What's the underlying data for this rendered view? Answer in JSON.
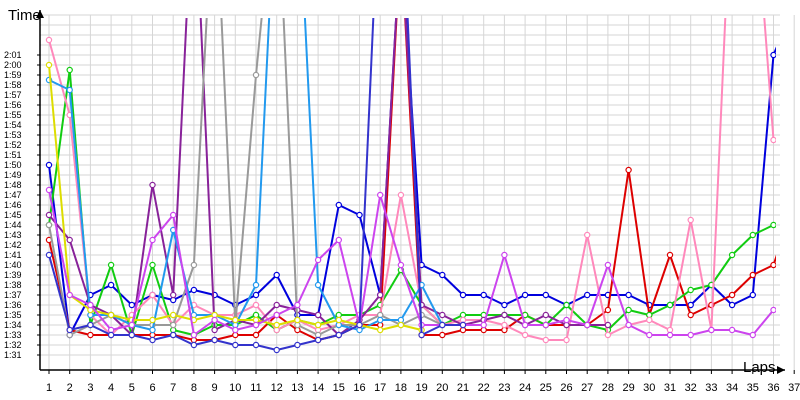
{
  "chart_data": {
    "type": "line",
    "ylabel": "Time",
    "xlabel": "Laps",
    "x": [
      1,
      2,
      3,
      4,
      5,
      6,
      7,
      8,
      9,
      10,
      11,
      12,
      13,
      14,
      15,
      16,
      17,
      18,
      19,
      20,
      21,
      22,
      23,
      24,
      25,
      26,
      27,
      28,
      29,
      30,
      31,
      32,
      33,
      34,
      35,
      36,
      37
    ],
    "y_ticks": [
      "1:31",
      "1:32",
      "1:33",
      "1:34",
      "1:35",
      "1:36",
      "1:37",
      "1:38",
      "1:39",
      "1:40",
      "1:41",
      "1:42",
      "1:43",
      "1:44",
      "1:45",
      "1:46",
      "1:47",
      "1:48",
      "1:49",
      "1:50",
      "1:51",
      "1:52",
      "1:53",
      "1:54",
      "1:55",
      "1:56",
      "1:57",
      "1:58",
      "1:59",
      "2:00",
      "2:01"
    ],
    "ylim_seconds": [
      91,
      121
    ],
    "xlim": [
      1,
      37
    ],
    "grid": true,
    "legend": "none",
    "series": [
      {
        "color": "#0000dd",
        "values": [
          110,
          93,
          97,
          98,
          96,
          97,
          96.5,
          97.5,
          97,
          96,
          97,
          99,
          95,
          95,
          106,
          105,
          97,
          133,
          100,
          99,
          97,
          97,
          96,
          97,
          97,
          96,
          97,
          97,
          97,
          96,
          96,
          96,
          98,
          96,
          97,
          121,
          126
        ]
      },
      {
        "color": "#dd0000",
        "values": [
          102.5,
          93.5,
          93,
          93,
          93,
          93,
          93,
          92.5,
          92.5,
          93,
          93,
          95,
          93.5,
          92.5,
          93,
          94,
          94,
          133,
          93,
          93,
          93.5,
          93.5,
          93.5,
          95,
          94,
          94,
          94,
          95.5,
          109.5,
          95,
          101,
          95,
          96,
          97,
          99,
          100,
          106
        ]
      },
      {
        "color": "#11cc11",
        "values": [
          104,
          119.5,
          94,
          100,
          93,
          100,
          93.5,
          93,
          94,
          94,
          95,
          93.5,
          94.5,
          94,
          95,
          95,
          96,
          99.5,
          96,
          94,
          95,
          95,
          95,
          95,
          94,
          96,
          94,
          93.5,
          95.5,
          95,
          96,
          97.5,
          98,
          101,
          103,
          104,
          103
        ]
      },
      {
        "color": "#ff88bb",
        "values": [
          122.5,
          115,
          95,
          93,
          95,
          97,
          94,
          96,
          95,
          95,
          96,
          93.5,
          94.5,
          93.5,
          94,
          95,
          95,
          107,
          96,
          94,
          94.5,
          94.5,
          94,
          93,
          92.5,
          92.5,
          103,
          93,
          94,
          94.5,
          93.5,
          104.5,
          93.5,
          140,
          140,
          112.5,
          null
        ]
      },
      {
        "color": "#882299",
        "values": [
          105,
          102.5,
          96,
          95,
          93,
          108,
          97,
          140,
          93.5,
          94.5,
          94,
          96,
          95.5,
          95,
          93,
          94.5,
          97,
          133,
          96,
          95,
          94,
          94.5,
          95,
          94,
          95,
          94,
          94,
          94,
          null,
          null,
          null,
          null,
          null,
          null,
          null,
          null,
          null
        ]
      },
      {
        "color": "#999999",
        "values": [
          104,
          93,
          94,
          95,
          94,
          94,
          94,
          100,
          140,
          94,
          119,
          140,
          94,
          93,
          94,
          94,
          95,
          94,
          95,
          94,
          null,
          null,
          null,
          null,
          null,
          null,
          null,
          null,
          null,
          null,
          null,
          null,
          null,
          null,
          null,
          null,
          null
        ]
      },
      {
        "color": "#2299ee",
        "values": [
          118.5,
          117.5,
          95,
          95,
          94,
          93.5,
          103.5,
          95,
          95,
          94,
          98,
          140,
          140,
          98,
          94,
          93.5,
          94.5,
          94.5,
          98,
          94,
          null,
          null,
          null,
          null,
          null,
          null,
          null,
          null,
          null,
          null,
          null,
          null,
          null,
          null,
          null,
          null,
          null
        ]
      },
      {
        "color": "#dddd00",
        "values": [
          120,
          97,
          95.5,
          95,
          94.5,
          94.5,
          95,
          94.5,
          95,
          94.5,
          94.5,
          94,
          94.5,
          94,
          94.5,
          94,
          93.5,
          94,
          93.5,
          null,
          null,
          null,
          null,
          null,
          null,
          null,
          null,
          null,
          null,
          null,
          null,
          null,
          null,
          null,
          null,
          null,
          null
        ]
      },
      {
        "color": "#cc44ee",
        "values": [
          107.5,
          97,
          96,
          93.5,
          94,
          102.5,
          105,
          93,
          94.5,
          93.5,
          94,
          95,
          96,
          100.5,
          102.5,
          94,
          107,
          100,
          94,
          94,
          94,
          94,
          101,
          94,
          94,
          94.5,
          94,
          100,
          94,
          93,
          93,
          93,
          93.5,
          93.5,
          93,
          95.5,
          null
        ]
      },
      {
        "color": "#3333cc",
        "values": [
          101,
          93.5,
          94,
          93,
          93,
          92.5,
          93,
          92,
          92.5,
          92,
          92,
          91.5,
          92,
          92.5,
          93,
          94,
          140,
          140,
          93,
          94,
          94,
          null,
          null,
          null,
          null,
          null,
          null,
          null,
          null,
          null,
          null,
          null,
          null,
          null,
          null,
          null,
          null
        ]
      }
    ]
  }
}
